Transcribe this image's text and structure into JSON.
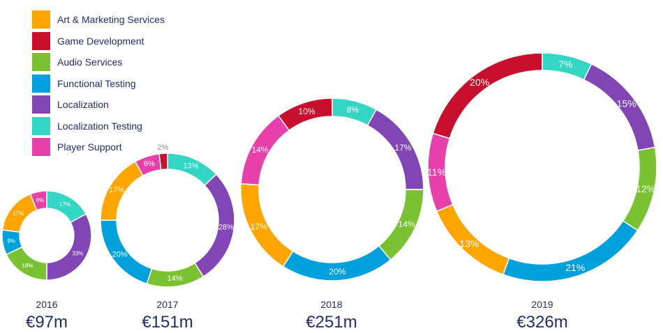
{
  "chart_data": {
    "type": "pie",
    "categories": [
      "Art & Marketing Services",
      "Game Development",
      "Audio Services",
      "Functional Testing",
      "Localization",
      "Localization Testing",
      "Player Support"
    ],
    "colors": {
      "Art & Marketing Services": "#FFA500",
      "Game Development": "#C8102E",
      "Audio Services": "#7AC231",
      "Functional Testing": "#00A0DD",
      "Localization": "#8145B5",
      "Localization Testing": "#33D6C3",
      "Player Support": "#E840AA"
    },
    "legend_position": "top-left",
    "charts": [
      {
        "year": "2016",
        "total": "€97m",
        "slices": [
          {
            "category": "Localization Testing",
            "value": 17,
            "label": "17%"
          },
          {
            "category": "Localization",
            "value": 33,
            "label": "33%"
          },
          {
            "category": "Audio Services",
            "value": 18,
            "label": "18%"
          },
          {
            "category": "Functional Testing",
            "value": 9,
            "label": "9%"
          },
          {
            "category": "Art & Marketing Services",
            "value": 17,
            "label": "17%"
          },
          {
            "category": "Player Support",
            "value": 6,
            "label": "6%"
          }
        ]
      },
      {
        "year": "2017",
        "total": "€151m",
        "slices": [
          {
            "category": "Localization Testing",
            "value": 13,
            "label": "13%"
          },
          {
            "category": "Localization",
            "value": 28,
            "label": "28%"
          },
          {
            "category": "Audio Services",
            "value": 14,
            "label": "14%"
          },
          {
            "category": "Functional Testing",
            "value": 20,
            "label": "20%"
          },
          {
            "category": "Art & Marketing Services",
            "value": 17,
            "label": "17%"
          },
          {
            "category": "Player Support",
            "value": 6,
            "label": "6%"
          },
          {
            "category": "Game Development",
            "value": 2,
            "label": "2%",
            "label_outside": true
          }
        ]
      },
      {
        "year": "2018",
        "total": "€251m",
        "slices": [
          {
            "category": "Localization Testing",
            "value": 8,
            "label": "8%"
          },
          {
            "category": "Localization",
            "value": 17,
            "label": "17%"
          },
          {
            "category": "Audio Services",
            "value": 14,
            "label": "14%"
          },
          {
            "category": "Functional Testing",
            "value": 20,
            "label": "20%"
          },
          {
            "category": "Art & Marketing Services",
            "value": 17,
            "label": "17%"
          },
          {
            "category": "Player Support",
            "value": 14,
            "label": "14%"
          },
          {
            "category": "Game Development",
            "value": 10,
            "label": "10%"
          }
        ]
      },
      {
        "year": "2019",
        "total": "€326m",
        "slices": [
          {
            "category": "Localization Testing",
            "value": 7,
            "label": "7%"
          },
          {
            "category": "Localization",
            "value": 15,
            "label": "15%"
          },
          {
            "category": "Audio Services",
            "value": 12,
            "label": "12%"
          },
          {
            "category": "Functional Testing",
            "value": 21,
            "label": "21%"
          },
          {
            "category": "Art & Marketing Services",
            "value": 13,
            "label": "13%"
          },
          {
            "category": "Player Support",
            "value": 11,
            "label": "11%"
          },
          {
            "category": "Game Development",
            "value": 20,
            "label": "20%"
          }
        ]
      }
    ]
  }
}
